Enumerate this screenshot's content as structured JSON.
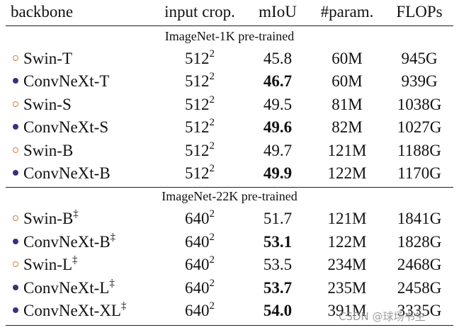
{
  "header": [
    "backbone",
    "input crop.",
    "mIoU",
    "#param.",
    "FLOPs"
  ],
  "sections": [
    {
      "title": "ImageNet-1K pre-trained",
      "rows": [
        {
          "filled": false,
          "name": "Swin-T",
          "crop": "512",
          "crop_exp": "2",
          "miou": "45.8",
          "bold": false,
          "params": "60M",
          "flops": "945G"
        },
        {
          "filled": true,
          "name": "ConvNeXt-T",
          "crop": "512",
          "crop_exp": "2",
          "miou": "46.7",
          "bold": true,
          "params": "60M",
          "flops": "939G"
        },
        {
          "filled": false,
          "name": "Swin-S",
          "crop": "512",
          "crop_exp": "2",
          "miou": "49.5",
          "bold": false,
          "params": "81M",
          "flops": "1038G"
        },
        {
          "filled": true,
          "name": "ConvNeXt-S",
          "crop": "512",
          "crop_exp": "2",
          "miou": "49.6",
          "bold": true,
          "params": "82M",
          "flops": "1027G"
        },
        {
          "filled": false,
          "name": "Swin-B",
          "crop": "512",
          "crop_exp": "2",
          "miou": "49.7",
          "bold": false,
          "params": "121M",
          "flops": "1188G"
        },
        {
          "filled": true,
          "name": "ConvNeXt-B",
          "crop": "512",
          "crop_exp": "2",
          "miou": "49.9",
          "bold": true,
          "params": "122M",
          "flops": "1170G"
        }
      ]
    },
    {
      "title": "ImageNet-22K pre-trained",
      "rows": [
        {
          "filled": false,
          "name": "Swin-B",
          "mark": "‡",
          "crop": "640",
          "crop_exp": "2",
          "miou": "51.7",
          "bold": false,
          "params": "121M",
          "flops": "1841G"
        },
        {
          "filled": true,
          "name": "ConvNeXt-B",
          "mark": "‡",
          "crop": "640",
          "crop_exp": "2",
          "miou": "53.1",
          "bold": true,
          "params": "122M",
          "flops": "1828G"
        },
        {
          "filled": false,
          "name": "Swin-L",
          "mark": "‡",
          "crop": "640",
          "crop_exp": "2",
          "miou": "53.5",
          "bold": false,
          "params": "234M",
          "flops": "2468G"
        },
        {
          "filled": true,
          "name": "ConvNeXt-L",
          "mark": "‡",
          "crop": "640",
          "crop_exp": "2",
          "miou": "53.7",
          "bold": true,
          "params": "235M",
          "flops": "2458G"
        },
        {
          "filled": true,
          "name": "ConvNeXt-XL",
          "mark": "‡",
          "crop": "640",
          "crop_exp": "2",
          "miou": "54.0",
          "bold": true,
          "params": "391M",
          "flops": "3335G"
        }
      ]
    }
  ],
  "watermark": "CSDN @球场书生"
}
